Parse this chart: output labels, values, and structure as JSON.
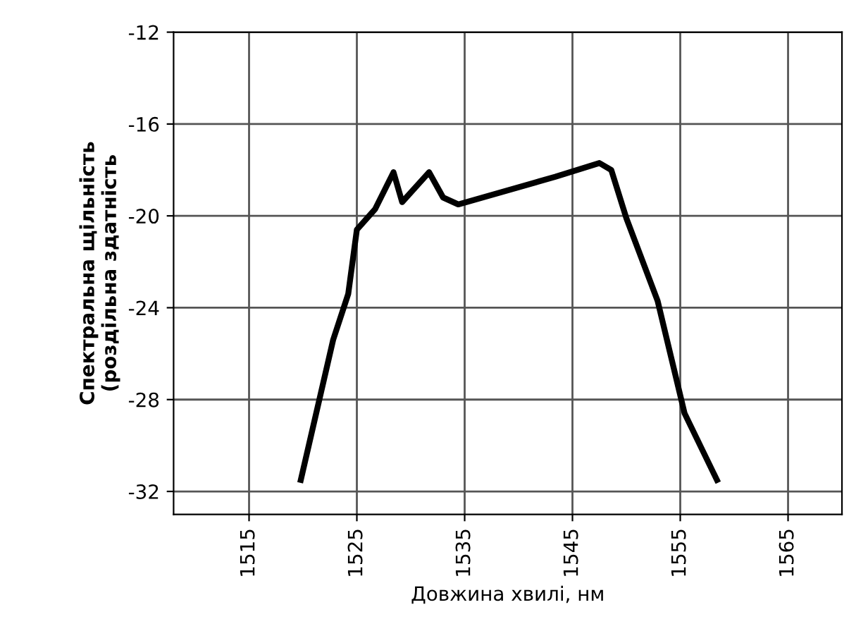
{
  "chart_data": {
    "type": "line",
    "xlabel": "Довжина хвилі, нм",
    "ylabel": "Спектральна щільність\n(роздільна здатність",
    "series": [
      {
        "color": "#000000",
        "x": [
          1519.8,
          1522.8,
          1524.2,
          1525.0,
          1526.7,
          1528.4,
          1529.2,
          1531.7,
          1533.0,
          1534.4,
          1543.4,
          1547.5,
          1548.6,
          1550.0,
          1552.9,
          1555.4,
          1558.4
        ],
        "values": [
          -31.5,
          -25.4,
          -23.4,
          -20.6,
          -19.7,
          -18.1,
          -19.4,
          -18.1,
          -19.2,
          -19.5,
          -18.3,
          -17.7,
          -18.0,
          -20.1,
          -23.7,
          -28.6,
          -31.5
        ]
      }
    ],
    "xlim": [
      1508,
      1570
    ],
    "xticks": [
      1515,
      1525,
      1535,
      1545,
      1555,
      1565
    ],
    "ylim": [
      -33,
      -12
    ],
    "yticks": [
      -12,
      -16,
      -20,
      -24,
      -28,
      -32
    ],
    "grid": true,
    "marker": "none",
    "line_style": "solid",
    "legend": false
  }
}
